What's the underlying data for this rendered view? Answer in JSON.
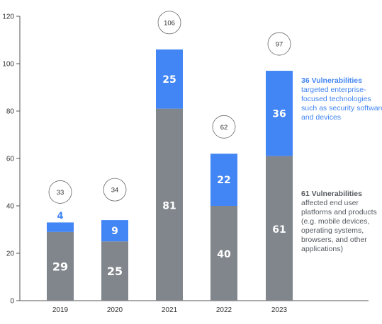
{
  "chart_data": {
    "type": "bar",
    "stacked": true,
    "categories": [
      "2019",
      "2020",
      "2021",
      "2022",
      "2023"
    ],
    "series": [
      {
        "values": [
          29,
          25,
          81,
          40,
          61
        ]
      },
      {
        "values": [
          4,
          9,
          25,
          22,
          36
        ]
      }
    ],
    "totals": [
      "33",
      "34",
      "106",
      "62",
      "97"
    ],
    "ylim": [
      0,
      120
    ],
    "yticks": [
      0,
      20,
      40,
      60,
      80,
      100,
      120
    ],
    "grid": false,
    "colors": {
      "bottom": "#80868b",
      "top": "#4285f4",
      "axis": "#555555"
    }
  },
  "annotations": {
    "top": {
      "head": "36 Vulnerabilities",
      "body": "targeted enterprise-focused technologies such as security software and devices"
    },
    "bottom": {
      "head": "61 Vulnerabilities",
      "body": "affected end user platforms and products (e.g. mobile devices, operating systems, browsers, and other applications)"
    }
  }
}
